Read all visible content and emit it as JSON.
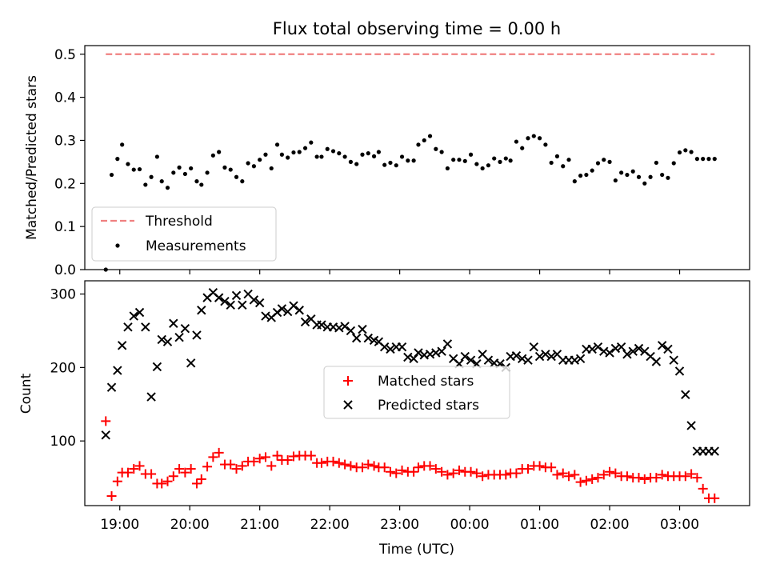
{
  "chart_data": [
    {
      "type": "scatter",
      "title": "Flux total observing time = 0.00 h",
      "xlabel": "",
      "ylabel": "Matched/Predicted stars",
      "xlim": [
        "18:30",
        "04:00"
      ],
      "ylim": [
        0,
        0.52
      ],
      "y_ticks": [
        0.0,
        0.1,
        0.2,
        0.3,
        0.4,
        0.5
      ],
      "grid": false,
      "legend_placement": "lower-left",
      "threshold": {
        "name": "Threshold",
        "value": 0.5,
        "x_start": "18:48",
        "x_end": "03:30",
        "color": "#f08080"
      },
      "series": [
        {
          "name": "Measurements",
          "color": "#000000",
          "x": [
            "18:48",
            "18:53",
            "18:58",
            "19:02",
            "19:07",
            "19:12",
            "19:17",
            "19:22",
            "19:27",
            "19:32",
            "19:36",
            "19:41",
            "19:46",
            "19:51",
            "19:56",
            "20:01",
            "20:06",
            "20:10",
            "20:15",
            "20:20",
            "20:25",
            "20:30",
            "20:35",
            "20:40",
            "20:45",
            "20:50",
            "20:55",
            "21:00",
            "21:05",
            "21:10",
            "21:15",
            "21:19",
            "21:24",
            "21:29",
            "21:34",
            "21:39",
            "21:44",
            "21:49",
            "21:53",
            "21:58",
            "22:03",
            "22:08",
            "22:13",
            "22:18",
            "22:23",
            "22:28",
            "22:33",
            "22:38",
            "22:42",
            "22:47",
            "22:52",
            "22:57",
            "23:02",
            "23:07",
            "23:12",
            "23:16",
            "23:21",
            "23:26",
            "23:31",
            "23:36",
            "23:41",
            "23:46",
            "23:51",
            "23:56",
            "00:01",
            "00:06",
            "00:11",
            "00:16",
            "00:21",
            "00:26",
            "00:31",
            "00:35",
            "00:40",
            "00:45",
            "00:50",
            "00:55",
            "01:00",
            "01:05",
            "01:10",
            "01:15",
            "01:20",
            "01:25",
            "01:30",
            "01:35",
            "01:40",
            "01:45",
            "01:50",
            "01:55",
            "02:00",
            "02:05",
            "02:10",
            "02:15",
            "02:20",
            "02:25",
            "02:30",
            "02:35",
            "02:40",
            "02:45",
            "02:50",
            "02:55",
            "03:00",
            "03:05",
            "03:10",
            "03:15",
            "03:20",
            "03:25",
            "03:30"
          ],
          "values": [
            0.0,
            0.22,
            0.257,
            0.29,
            0.245,
            0.232,
            0.233,
            0.197,
            0.215,
            0.262,
            0.205,
            0.19,
            0.225,
            0.237,
            0.222,
            0.235,
            0.205,
            0.197,
            0.225,
            0.265,
            0.273,
            0.237,
            0.232,
            0.215,
            0.205,
            0.247,
            0.24,
            0.255,
            0.267,
            0.235,
            0.29,
            0.267,
            0.26,
            0.272,
            0.273,
            0.282,
            0.295,
            0.262,
            0.262,
            0.28,
            0.275,
            0.27,
            0.262,
            0.25,
            0.245,
            0.267,
            0.27,
            0.263,
            0.273,
            0.243,
            0.248,
            0.242,
            0.262,
            0.253,
            0.253,
            0.29,
            0.3,
            0.31,
            0.28,
            0.273,
            0.235,
            0.255,
            0.255,
            0.252,
            0.267,
            0.245,
            0.235,
            0.242,
            0.258,
            0.25,
            0.258,
            0.253,
            0.297,
            0.282,
            0.305,
            0.31,
            0.305,
            0.29,
            0.248,
            0.263,
            0.24,
            0.255,
            0.205,
            0.218,
            0.22,
            0.23,
            0.247,
            0.255,
            0.25,
            0.207,
            0.225,
            0.22,
            0.228,
            0.215,
            0.2,
            0.215,
            0.248,
            0.22,
            0.213,
            0.247,
            0.272,
            0.277,
            0.273,
            0.257,
            0.257,
            0.257,
            0.257
          ]
        }
      ]
    },
    {
      "type": "scatter",
      "title": "",
      "xlabel": "Time (UTC)",
      "ylabel": "Count",
      "xlim": [
        "18:30",
        "04:00"
      ],
      "x_ticks": [
        "19:00",
        "20:00",
        "21:00",
        "22:00",
        "23:00",
        "00:00",
        "01:00",
        "02:00",
        "03:00"
      ],
      "ylim": [
        12,
        318
      ],
      "y_ticks": [
        100,
        200,
        300
      ],
      "grid": false,
      "legend_placement": "center",
      "series": [
        {
          "name": "Matched stars",
          "color": "#ff0000",
          "marker": "plus",
          "x": [
            "18:48",
            "18:53",
            "18:58",
            "19:02",
            "19:07",
            "19:12",
            "19:17",
            "19:22",
            "19:27",
            "19:32",
            "19:36",
            "19:41",
            "19:46",
            "19:51",
            "19:56",
            "20:01",
            "20:06",
            "20:10",
            "20:15",
            "20:20",
            "20:25",
            "20:30",
            "20:35",
            "20:40",
            "20:45",
            "20:50",
            "20:55",
            "21:00",
            "21:05",
            "21:10",
            "21:15",
            "21:19",
            "21:24",
            "21:29",
            "21:34",
            "21:39",
            "21:44",
            "21:49",
            "21:53",
            "21:58",
            "22:03",
            "22:08",
            "22:13",
            "22:18",
            "22:23",
            "22:28",
            "22:33",
            "22:38",
            "22:42",
            "22:47",
            "22:52",
            "22:57",
            "23:02",
            "23:07",
            "23:12",
            "23:16",
            "23:21",
            "23:26",
            "23:31",
            "23:36",
            "23:41",
            "23:46",
            "23:51",
            "23:56",
            "00:01",
            "00:06",
            "00:11",
            "00:16",
            "00:21",
            "00:26",
            "00:31",
            "00:35",
            "00:40",
            "00:45",
            "00:50",
            "00:55",
            "01:00",
            "01:05",
            "01:10",
            "01:15",
            "01:20",
            "01:25",
            "01:30",
            "01:35",
            "01:40",
            "01:45",
            "01:50",
            "01:55",
            "02:00",
            "02:05",
            "02:10",
            "02:15",
            "02:20",
            "02:25",
            "02:30",
            "02:35",
            "02:40",
            "02:45",
            "02:50",
            "02:55",
            "03:00",
            "03:05",
            "03:10",
            "03:15",
            "03:20",
            "03:25",
            "03:30"
          ],
          "values": [
            127,
            25,
            45,
            57,
            57,
            62,
            66,
            55,
            55,
            42,
            42,
            45,
            52,
            62,
            57,
            62,
            42,
            48,
            65,
            78,
            84,
            68,
            68,
            62,
            66,
            72,
            72,
            76,
            78,
            66,
            80,
            74,
            74,
            79,
            80,
            80,
            80,
            70,
            70,
            72,
            72,
            70,
            68,
            66,
            64,
            64,
            68,
            66,
            64,
            64,
            58,
            56,
            60,
            58,
            58,
            64,
            66,
            66,
            62,
            58,
            54,
            56,
            60,
            58,
            58,
            56,
            52,
            54,
            54,
            54,
            54,
            56,
            56,
            62,
            62,
            66,
            66,
            64,
            64,
            54,
            56,
            52,
            54,
            44,
            46,
            48,
            50,
            54,
            58,
            56,
            52,
            52,
            50,
            50,
            48,
            50,
            50,
            54,
            52,
            52,
            52,
            52,
            55,
            50,
            35,
            22,
            22
          ]
        },
        {
          "name": "Predicted stars",
          "color": "#000000",
          "marker": "x",
          "x": [
            "18:48",
            "18:53",
            "18:58",
            "19:02",
            "19:07",
            "19:12",
            "19:17",
            "19:22",
            "19:27",
            "19:32",
            "19:36",
            "19:41",
            "19:46",
            "19:51",
            "19:56",
            "20:01",
            "20:06",
            "20:10",
            "20:15",
            "20:20",
            "20:25",
            "20:30",
            "20:35",
            "20:40",
            "20:45",
            "20:50",
            "20:55",
            "21:00",
            "21:05",
            "21:10",
            "21:15",
            "21:19",
            "21:24",
            "21:29",
            "21:34",
            "21:39",
            "21:44",
            "21:49",
            "21:53",
            "21:58",
            "22:03",
            "22:08",
            "22:13",
            "22:18",
            "22:23",
            "22:28",
            "22:33",
            "22:38",
            "22:42",
            "22:47",
            "22:52",
            "22:57",
            "23:02",
            "23:07",
            "23:12",
            "23:16",
            "23:21",
            "23:26",
            "23:31",
            "23:36",
            "23:41",
            "23:46",
            "23:51",
            "23:56",
            "00:01",
            "00:06",
            "00:11",
            "00:16",
            "00:21",
            "00:26",
            "00:31",
            "00:35",
            "00:40",
            "00:45",
            "00:50",
            "00:55",
            "01:00",
            "01:05",
            "01:10",
            "01:15",
            "01:20",
            "01:25",
            "01:30",
            "01:35",
            "01:40",
            "01:45",
            "01:50",
            "01:55",
            "02:00",
            "02:05",
            "02:10",
            "02:15",
            "02:20",
            "02:25",
            "02:30",
            "02:35",
            "02:40",
            "02:45",
            "02:50",
            "02:55",
            "03:00",
            "03:05",
            "03:10",
            "03:15",
            "03:20",
            "03:25",
            "03:30"
          ],
          "values": [
            108,
            173,
            196,
            230,
            255,
            270,
            275,
            255,
            160,
            201,
            238,
            235,
            260,
            241,
            253,
            206,
            244,
            278,
            295,
            302,
            295,
            290,
            285,
            298,
            285,
            300,
            292,
            288,
            270,
            268,
            275,
            280,
            276,
            284,
            278,
            262,
            266,
            258,
            258,
            255,
            255,
            254,
            256,
            250,
            240,
            252,
            240,
            237,
            235,
            228,
            225,
            228,
            228,
            214,
            212,
            220,
            217,
            218,
            220,
            222,
            232,
            212,
            205,
            215,
            210,
            205,
            218,
            210,
            206,
            205,
            200,
            215,
            216,
            212,
            210,
            228,
            215,
            218,
            215,
            218,
            210,
            210,
            210,
            212,
            225,
            225,
            228,
            222,
            220,
            226,
            228,
            218,
            222,
            226,
            222,
            215,
            208,
            230,
            225,
            210,
            195,
            163,
            121,
            86,
            86,
            86,
            86
          ]
        }
      ]
    }
  ]
}
